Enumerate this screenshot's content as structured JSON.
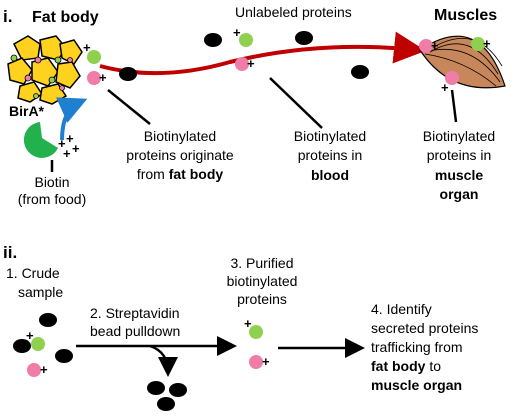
{
  "part_i": {
    "label": "i.",
    "fat_body": "Fat body",
    "unlabeled": "Unlabeled proteins",
    "muscles": "Muscles",
    "enzyme": "BirA*",
    "biotin_line1": "Biotin",
    "biotin_line2": "(from food)",
    "origin_line1": "Biotinylated",
    "origin_line2": "proteins originate",
    "origin_line3_pre": "from ",
    "origin_line3_bold": "fat body",
    "blood_line1": "Biotinylated",
    "blood_line2": "proteins in",
    "blood_line3": "blood",
    "muscle_line1": "Biotinylated",
    "muscle_line2": "proteins in",
    "muscle_line3": "muscle",
    "muscle_line4": "organ",
    "plus": "+"
  },
  "part_ii": {
    "label": "ii.",
    "step1_line1": "1. Crude",
    "step1_line2": "sample",
    "step2_line1": "2. Streptavidin",
    "step2_line2": "bead pulldown",
    "step3_line1": "3. Purified",
    "step3_line2": "biotinylated",
    "step3_line3": "proteins",
    "step4_line1": "4. Identify",
    "step4_line2": "secreted proteins",
    "step4_line3": "trafficking from",
    "step4_line4": "fat body",
    "step4_line4_post": " to",
    "step4_line5": "muscle organ"
  },
  "colors": {
    "green_protein": "#8fd14f",
    "pink_protein": "#f07ca8",
    "unlabeled_protein": "#000000",
    "enzyme": "#22b14c",
    "arrow_blood": "#c00000",
    "arrow_biotin": "#1f7fd0",
    "fat_cell": "#ffd21f",
    "muscle": "#c8875a"
  }
}
